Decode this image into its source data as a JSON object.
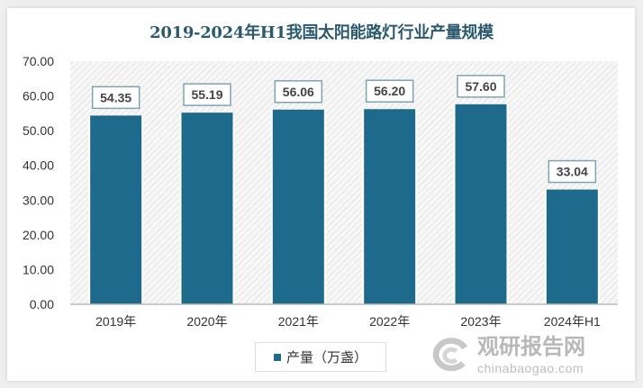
{
  "chart_data": {
    "type": "bar",
    "title": "2019-2024年H1我国太阳能路灯行业产量规模",
    "categories": [
      "2019年",
      "2020年",
      "2021年",
      "2022年",
      "2023年",
      "2024年H1"
    ],
    "series": [
      {
        "name": "产量（万盏）",
        "values": [
          54.35,
          55.19,
          56.06,
          56.2,
          57.6,
          33.04
        ]
      }
    ],
    "data_labels": [
      "54.35",
      "55.19",
      "56.06",
      "56.20",
      "57.60",
      "33.04"
    ],
    "ylim": [
      0,
      70
    ],
    "yticks": [
      "0.00",
      "10.00",
      "20.00",
      "30.00",
      "40.00",
      "50.00",
      "60.00",
      "70.00"
    ],
    "legend_position": "bottom",
    "grid": false,
    "colors": {
      "bar": "#1e6a8d",
      "title": "#2b5a6e"
    }
  },
  "watermark": {
    "cn": "观研报告网",
    "en": "chinabaogao.com"
  }
}
